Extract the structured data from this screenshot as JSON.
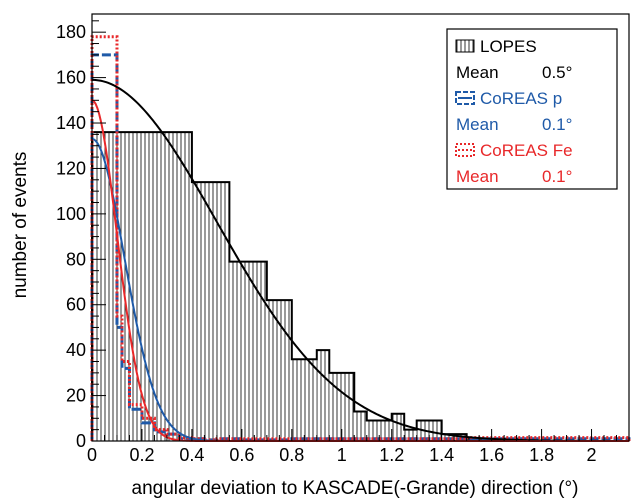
{
  "chart_data": {
    "type": "histogram",
    "xlabel": "angular deviation to KASCADE(-Grande) direction (°)",
    "ylabel": "number of events",
    "xlim": [
      0,
      2.15
    ],
    "ylim": [
      0,
      188
    ],
    "x_ticks": [
      0,
      0.2,
      0.4,
      0.6,
      0.8,
      1,
      1.2,
      1.4,
      1.6,
      1.8,
      2
    ],
    "x_tick_labels": [
      "0",
      "0.2",
      "0.4",
      "0.6",
      "0.8",
      "1",
      "1.2",
      "1.4",
      "1.6",
      "1.8",
      "2"
    ],
    "y_ticks": [
      0,
      20,
      40,
      60,
      80,
      100,
      120,
      140,
      160,
      180
    ],
    "y_tick_labels": [
      "0",
      "20",
      "40",
      "60",
      "80",
      "100",
      "120",
      "140",
      "160",
      "180"
    ],
    "legend_position": "top-right",
    "series": [
      {
        "name": "LOPES",
        "mean_label": "Mean",
        "mean_value": "0.5°",
        "color": "#000000",
        "style": "hatched-histogram",
        "bin_edges": [
          0,
          0.4,
          0.55,
          0.7,
          0.8,
          0.9,
          0.95,
          1.05,
          1.1,
          1.2,
          1.25,
          1.3,
          1.4,
          1.5,
          1.6,
          1.7,
          1.8,
          1.9,
          2.0,
          2.15
        ],
        "counts": [
          136,
          114,
          79,
          62,
          36,
          40,
          30,
          13,
          9,
          12,
          5,
          9,
          3,
          1,
          1,
          0,
          0,
          0,
          0
        ],
        "fit": {
          "function": "gaussian",
          "amplitude": 159,
          "mean": 0,
          "sigma": 0.5
        }
      },
      {
        "name": "CoREAS p",
        "mean_label": "Mean",
        "mean_value": "0.1°",
        "color": "#1f5aa8",
        "style": "dashed-histogram",
        "bin_edges": [
          0,
          0.1,
          0.12,
          0.15,
          0.2,
          0.25,
          0.3,
          0.35,
          0.4,
          0.45,
          0.5,
          0.6,
          0.8,
          1.0,
          1.5,
          2.15
        ],
        "counts": [
          170,
          50,
          32,
          14,
          8,
          4,
          3,
          1,
          1,
          0.5,
          1,
          0.5,
          1,
          1,
          1
        ],
        "fit": {
          "function": "gaussian",
          "amplitude": 133,
          "mean": 0,
          "sigma": 0.13
        }
      },
      {
        "name": "CoREAS Fe",
        "mean_label": "Mean",
        "mean_value": "0.1°",
        "color": "#e8282a",
        "style": "dotted-histogram",
        "bin_edges": [
          0,
          0.1,
          0.12,
          0.15,
          0.2,
          0.25,
          0.3,
          0.35,
          0.4,
          0.45,
          0.5,
          0.6,
          0.8,
          1.0,
          1.5,
          2.15
        ],
        "counts": [
          178,
          55,
          35,
          16,
          10,
          5,
          3,
          1.5,
          1,
          0.5,
          1,
          1,
          1,
          1,
          1.5
        ],
        "fit": {
          "function": "gaussian",
          "amplitude": 150,
          "mean": 0,
          "sigma": 0.1
        }
      }
    ]
  }
}
